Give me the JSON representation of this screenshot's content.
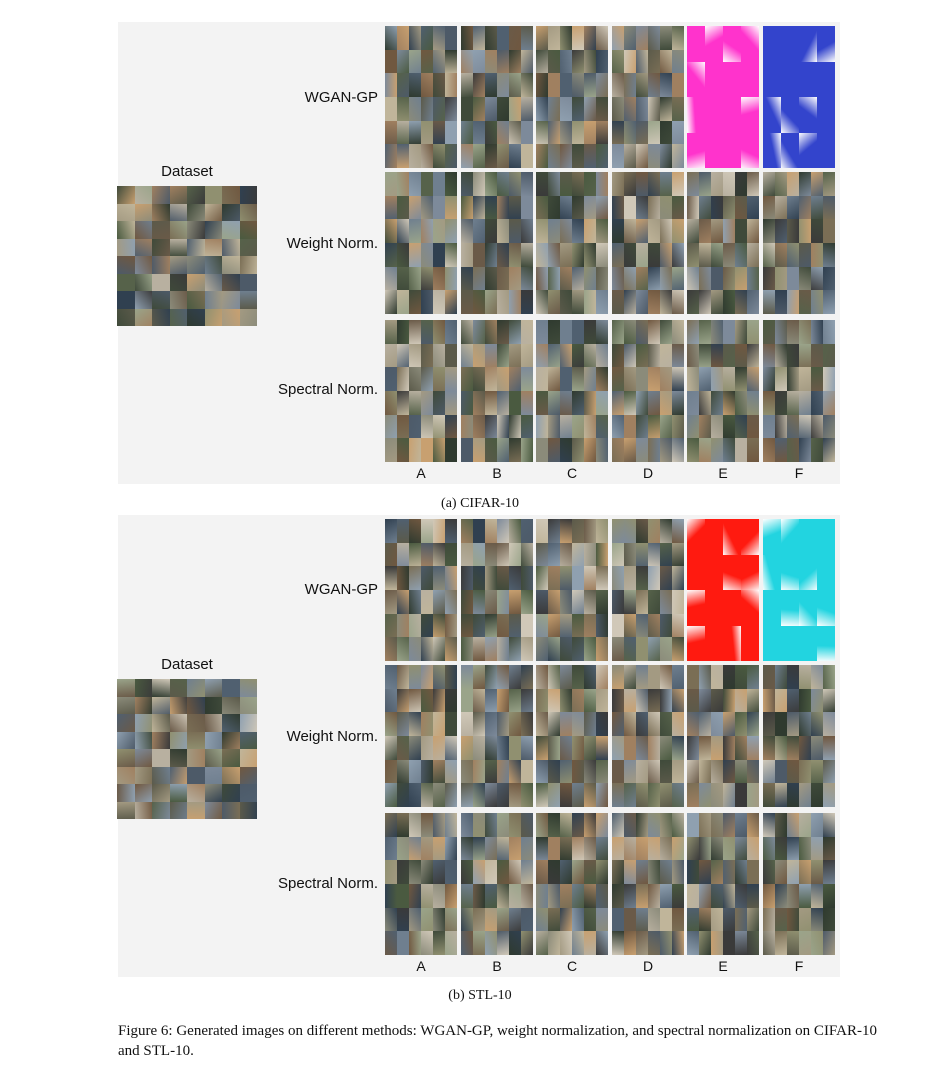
{
  "panels": [
    {
      "id": "cifar",
      "dataset_label": "Dataset",
      "row_labels": [
        "WGAN-GP",
        "Weight Norm.",
        "Spectral Norm."
      ],
      "column_labels": [
        "A",
        "B",
        "C",
        "D",
        "E",
        "F"
      ],
      "subcaption": "(a)  CIFAR-10",
      "collapsed_tiles": {
        "WGAN-GP:E": "#ff33cc",
        "WGAN-GP:F": "#3344cc"
      }
    },
    {
      "id": "stl",
      "dataset_label": "Dataset",
      "row_labels": [
        "WGAN-GP",
        "Weight Norm.",
        "Spectral Norm."
      ],
      "column_labels": [
        "A",
        "B",
        "C",
        "D",
        "E",
        "F"
      ],
      "subcaption": "(b)  STL-10",
      "collapsed_tiles": {
        "WGAN-GP:E": "#ff1a10",
        "WGAN-GP:F": "#22d4e0"
      }
    }
  ],
  "caption": "Figure 6:  Generated images on different methods: WGAN-GP, weight normalization, and spectral normalization on CIFAR-10 and STL-10."
}
